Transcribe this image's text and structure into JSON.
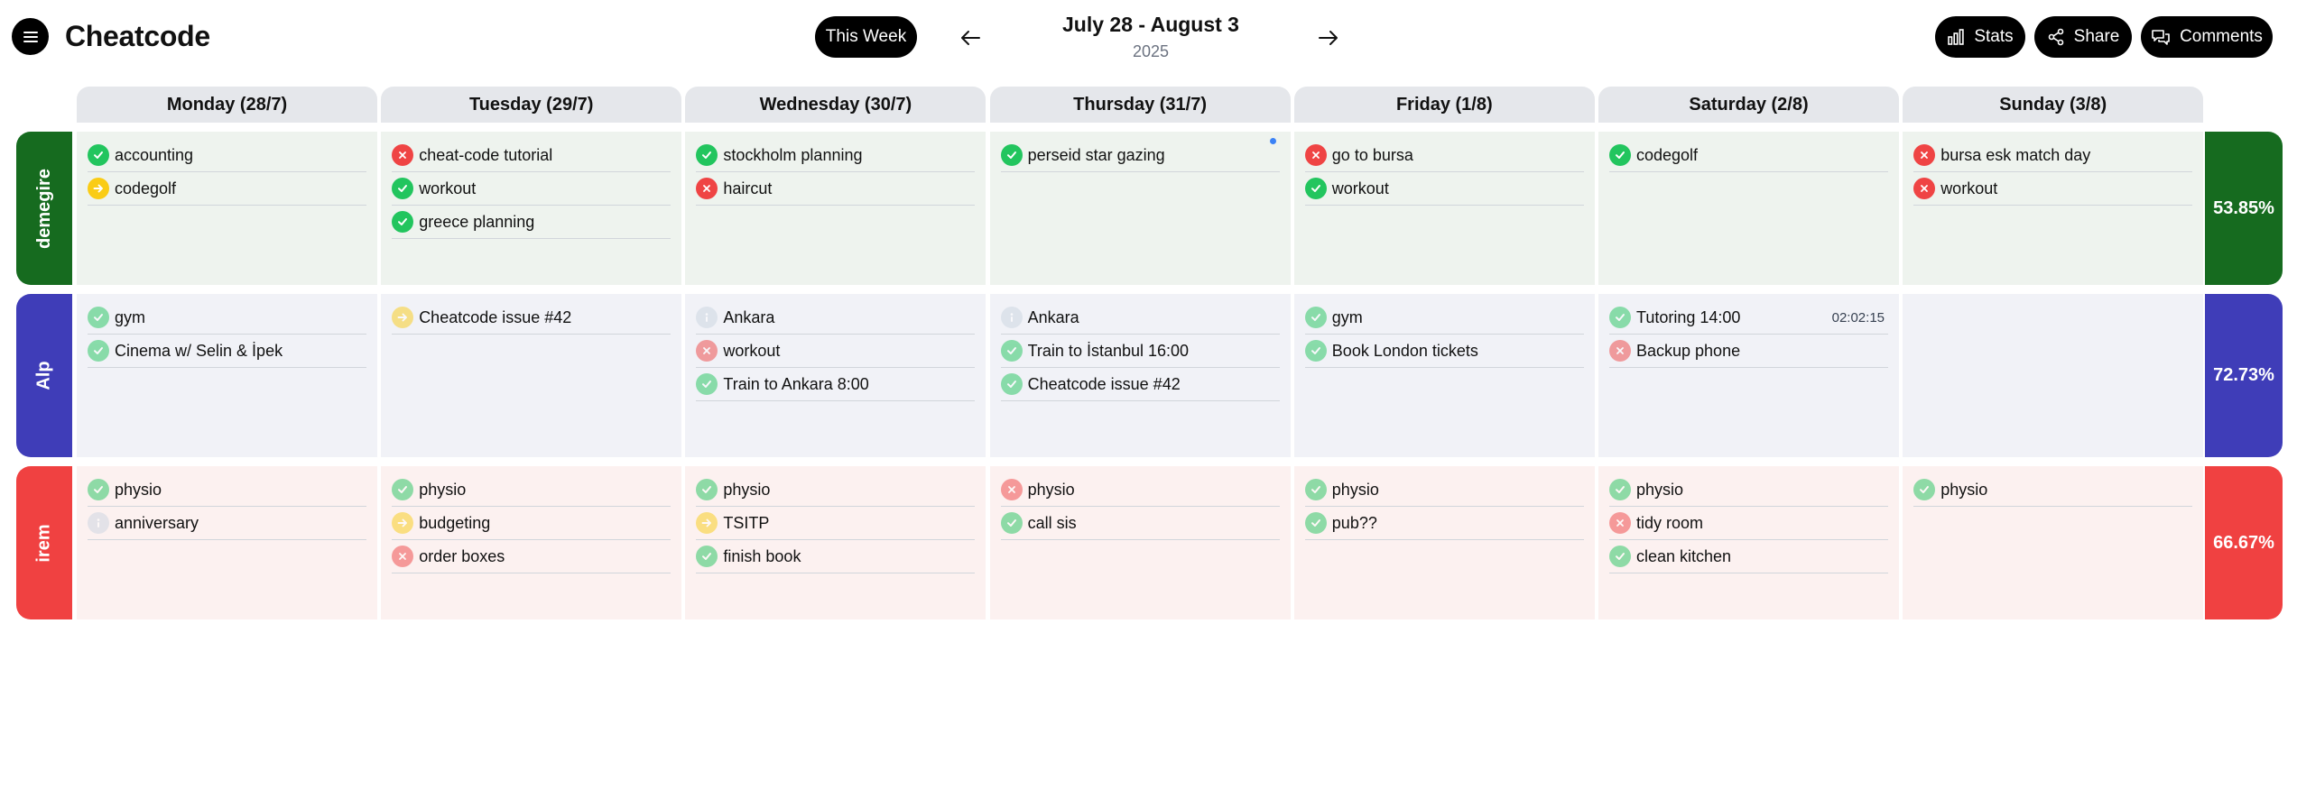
{
  "app": {
    "title": "Cheatcode",
    "menu_icon": "hamburger-menu-icon"
  },
  "nav": {
    "this_week_label": "This Week",
    "range": "July 28 - August 3",
    "year": "2025",
    "prev_icon": "arrow-left-icon",
    "next_icon": "arrow-right-icon"
  },
  "actions": {
    "stats_label": "Stats",
    "share_label": "Share",
    "comments_label": "Comments"
  },
  "days": [
    "Monday (28/7)",
    "Tuesday (29/7)",
    "Wednesday (30/7)",
    "Thursday (31/7)",
    "Friday (1/8)",
    "Saturday (2/8)",
    "Sunday (3/8)"
  ],
  "people": [
    {
      "name": "demegire",
      "percent": "53.85%",
      "color": "#166b1f",
      "cell_bg": "#eef3ee",
      "faded": false,
      "days": [
        [
          {
            "text": "accounting",
            "status": "done"
          },
          {
            "text": "codegolf",
            "status": "move"
          }
        ],
        [
          {
            "text": "cheat-code tutorial",
            "status": "fail"
          },
          {
            "text": "workout",
            "status": "done"
          },
          {
            "text": "greece planning",
            "status": "done"
          }
        ],
        [
          {
            "text": "stockholm planning",
            "status": "done"
          },
          {
            "text": "haircut",
            "status": "fail"
          }
        ],
        [
          {
            "text": "perseid star gazing",
            "status": "done",
            "marker": true
          }
        ],
        [
          {
            "text": "go to bursa",
            "status": "fail"
          },
          {
            "text": "workout",
            "status": "done"
          }
        ],
        [
          {
            "text": "codegolf",
            "status": "done"
          }
        ],
        [
          {
            "text": "bursa esk match day",
            "status": "fail"
          },
          {
            "text": "workout",
            "status": "fail"
          }
        ]
      ]
    },
    {
      "name": "Alp",
      "percent": "72.73%",
      "color": "#3f3db8",
      "cell_bg": "#f1f2f7",
      "faded": true,
      "days": [
        [
          {
            "text": "gym",
            "status": "done"
          },
          {
            "text": "Cinema w/ Selin & İpek",
            "status": "done"
          }
        ],
        [
          {
            "text": "Cheatcode issue #42",
            "status": "move"
          }
        ],
        [
          {
            "text": "Ankara",
            "status": "info"
          },
          {
            "text": "workout",
            "status": "fail"
          },
          {
            "text": "Train to Ankara 8:00",
            "status": "done"
          }
        ],
        [
          {
            "text": "Ankara",
            "status": "info"
          },
          {
            "text": "Train to İstanbul 16:00",
            "status": "done"
          },
          {
            "text": "Cheatcode issue #42",
            "status": "done"
          }
        ],
        [
          {
            "text": "gym",
            "status": "done"
          },
          {
            "text": "Book London tickets",
            "status": "done"
          }
        ],
        [
          {
            "text": "Tutoring 14:00",
            "status": "done",
            "time": "02:02:15"
          },
          {
            "text": "Backup phone",
            "status": "fail"
          }
        ],
        []
      ]
    },
    {
      "name": "irem",
      "percent": "66.67%",
      "color": "#f04141",
      "cell_bg": "#fcf1f0",
      "faded": true,
      "days": [
        [
          {
            "text": "physio",
            "status": "done"
          },
          {
            "text": "anniversary",
            "status": "info"
          }
        ],
        [
          {
            "text": "physio",
            "status": "done"
          },
          {
            "text": "budgeting",
            "status": "move"
          },
          {
            "text": "order boxes",
            "status": "fail"
          }
        ],
        [
          {
            "text": "physio",
            "status": "done"
          },
          {
            "text": "TSITP",
            "status": "move"
          },
          {
            "text": "finish book",
            "status": "done"
          }
        ],
        [
          {
            "text": "physio",
            "status": "fail"
          },
          {
            "text": "call sis",
            "status": "done"
          }
        ],
        [
          {
            "text": "physio",
            "status": "done"
          },
          {
            "text": "pub??",
            "status": "done"
          }
        ],
        [
          {
            "text": "physio",
            "status": "done"
          },
          {
            "text": "tidy room",
            "status": "fail"
          },
          {
            "text": "clean kitchen",
            "status": "done"
          }
        ],
        [
          {
            "text": "physio",
            "status": "done"
          }
        ]
      ]
    }
  ],
  "status_icons": {
    "done": "check-icon",
    "fail": "x-icon",
    "move": "arrow-right-icon",
    "info": "info-icon"
  }
}
